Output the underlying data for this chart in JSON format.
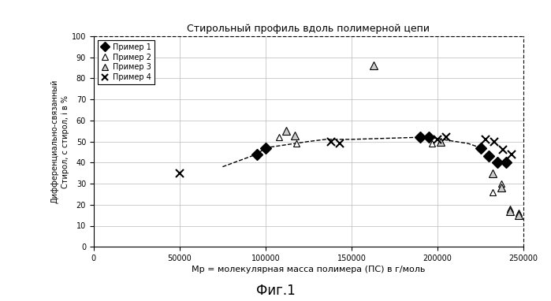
{
  "title": "Стирольный профиль вдоль полимерной цепи",
  "xlabel": "Мр = молекулярная масса полимера (ПС) в г/моль",
  "ylabel_line1": "Дифференциально-связанный",
  "ylabel_line2": "Стирол, с стирол, i в %",
  "caption": "Фиг.1",
  "xlim": [
    0,
    250000
  ],
  "ylim": [
    0,
    100
  ],
  "xticks": [
    0,
    50000,
    100000,
    150000,
    200000,
    250000
  ],
  "yticks": [
    0,
    10,
    20,
    30,
    40,
    50,
    60,
    70,
    80,
    90,
    100
  ],
  "series1_label": "Пример 1",
  "series1_x": [
    95000,
    100000,
    190000,
    195000,
    225000,
    230000,
    235000,
    240000
  ],
  "series1_y": [
    44,
    47,
    52,
    52,
    47,
    43,
    40,
    40
  ],
  "series1_dashed_x": [
    75000,
    95000,
    100000,
    125000,
    135000,
    150000,
    190000,
    195000,
    218000,
    225000
  ],
  "series1_dashed_y": [
    38,
    44,
    47,
    50,
    51,
    51,
    52,
    52,
    49,
    47
  ],
  "series2_label": "Пример 2",
  "series2_x": [
    108000,
    118000,
    197000,
    202000,
    232000,
    237000,
    242000,
    247000
  ],
  "series2_y": [
    52,
    49,
    49,
    50,
    26,
    30,
    18,
    16
  ],
  "series3_label": "Пример 3",
  "series3_x": [
    112000,
    117000,
    163000,
    202000,
    232000,
    237000,
    242000,
    247000
  ],
  "series3_y": [
    55,
    53,
    86,
    50,
    35,
    28,
    17,
    15
  ],
  "series4_label": "Пример 4",
  "series4_x": [
    50000,
    138000,
    143000,
    200000,
    205000,
    228000,
    233000,
    238000,
    243000
  ],
  "series4_y": [
    35,
    50,
    49,
    51,
    52,
    51,
    50,
    46,
    44
  ],
  "background_color": "#ffffff",
  "plot_bg_color": "#ffffff",
  "grid_color": "#bbbbbb",
  "font_size": 8,
  "title_font_size": 9,
  "caption_font_size": 12,
  "tick_font_size": 7
}
